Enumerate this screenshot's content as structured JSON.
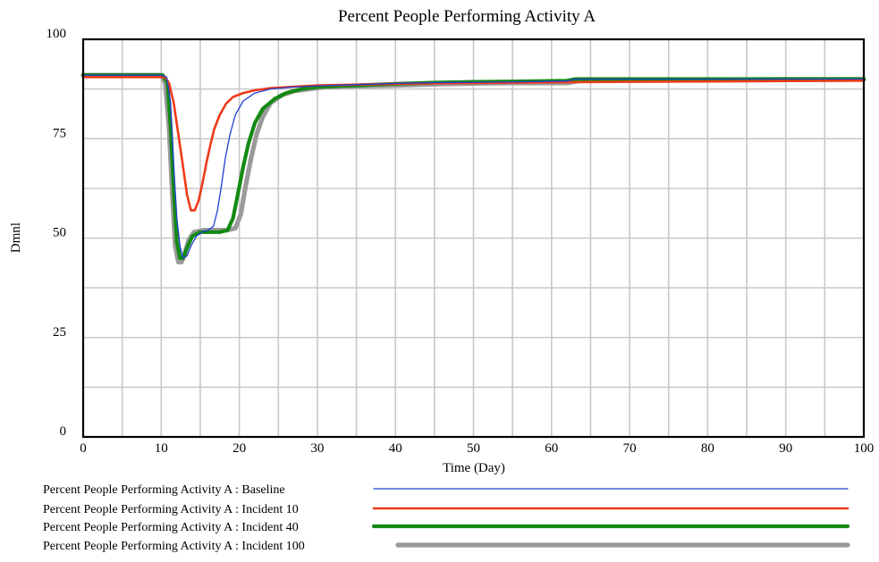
{
  "chart_data": {
    "type": "line",
    "title": "Percent People Performing Activity A",
    "xlabel": "Time (Day)",
    "ylabel": "Dmnl",
    "xlim": [
      0,
      100
    ],
    "ylim": [
      0,
      100
    ],
    "x_ticks": [
      "0",
      "10",
      "20",
      "30",
      "40",
      "50",
      "60",
      "70",
      "80",
      "90",
      "100"
    ],
    "y_ticks": [
      "0",
      "25",
      "50",
      "75",
      "100"
    ],
    "grid": true,
    "legend_position": "bottom",
    "series": [
      {
        "name": "Percent People Performing Activity A : Baseline",
        "color": "#1f3fd4",
        "x": [
          0,
          10,
          10.7,
          11.2,
          11.6,
          12,
          12.4,
          12.8,
          13.3,
          13.8,
          14.5,
          15.2,
          16,
          16.7,
          17.2,
          17.7,
          18.2,
          18.8,
          19.5,
          20.5,
          22,
          24,
          27,
          30,
          35,
          40,
          45,
          50,
          55,
          62,
          63,
          70,
          80,
          90,
          100
        ],
        "y": [
          91,
          91,
          90.5,
          84,
          68,
          55,
          48,
          45,
          45.5,
          48,
          50.5,
          51.5,
          52,
          53,
          57,
          63,
          70,
          76,
          81,
          84.5,
          86.5,
          87.5,
          88,
          88.3,
          88.6,
          88.9,
          89.1,
          89.2,
          89.3,
          89.5,
          90,
          90,
          90,
          90,
          90
        ]
      },
      {
        "name": "Percent People Performing Activity A : Incident 10",
        "color": "#ee3a1a",
        "x": [
          0,
          10.5,
          11,
          11.6,
          12.2,
          12.8,
          13.3,
          13.8,
          14.3,
          14.8,
          15.3,
          15.8,
          16.3,
          16.8,
          17.5,
          18.3,
          19.2,
          20.5,
          22,
          24,
          27,
          30,
          35,
          40,
          50,
          60,
          70,
          80,
          90,
          100
        ],
        "y": [
          90.5,
          90.5,
          89,
          84,
          76,
          68,
          61,
          57,
          57,
          59.5,
          64,
          69,
          73.5,
          77.5,
          81,
          83.8,
          85.5,
          86.5,
          87.2,
          87.7,
          88.1,
          88.4,
          88.6,
          88.8,
          89,
          89.2,
          89.3,
          89.4,
          89.5,
          89.6
        ]
      },
      {
        "name": "Percent People Performing Activity A : Incident 40",
        "color": "#138a13",
        "x": [
          0,
          10.2,
          10.8,
          11.2,
          11.6,
          12,
          12.4,
          12.8,
          13.3,
          14,
          15,
          16,
          17.5,
          18.5,
          19.2,
          19.8,
          20.5,
          21.2,
          22,
          23,
          24.5,
          26,
          28,
          30,
          35,
          40,
          45,
          50,
          55,
          62,
          63,
          70,
          80,
          90,
          100
        ],
        "y": [
          91,
          91,
          89,
          78,
          62,
          49,
          45,
          45,
          47.5,
          50.5,
          51.5,
          51.5,
          51.5,
          52,
          55,
          61,
          68,
          74,
          79,
          82.5,
          85,
          86.5,
          87.5,
          88,
          88.4,
          88.8,
          89.1,
          89.3,
          89.4,
          89.6,
          90,
          90,
          90,
          90,
          90
        ]
      },
      {
        "name": "Percent People Performing Activity A : Incident 100",
        "color": "#9a9a9a",
        "x": [
          0,
          10,
          10.5,
          11,
          11.4,
          11.8,
          12.2,
          12.6,
          13,
          13.5,
          14.2,
          15.5,
          17,
          18.5,
          19.5,
          20.2,
          20.8,
          21.5,
          22.2,
          23,
          24,
          25.5,
          27,
          29,
          31,
          35,
          40,
          45,
          50,
          55,
          62,
          64,
          70,
          80,
          90,
          100
        ],
        "y": [
          91,
          91,
          89,
          78,
          62,
          48,
          44,
          44,
          46,
          49.5,
          51.5,
          52,
          52,
          52,
          52.5,
          56,
          63,
          70,
          76,
          80.5,
          84,
          86,
          87,
          87.5,
          88,
          88.2,
          88.4,
          88.7,
          88.9,
          89,
          89,
          89.7,
          89.8,
          89.8,
          89.9,
          89.9
        ]
      }
    ]
  }
}
